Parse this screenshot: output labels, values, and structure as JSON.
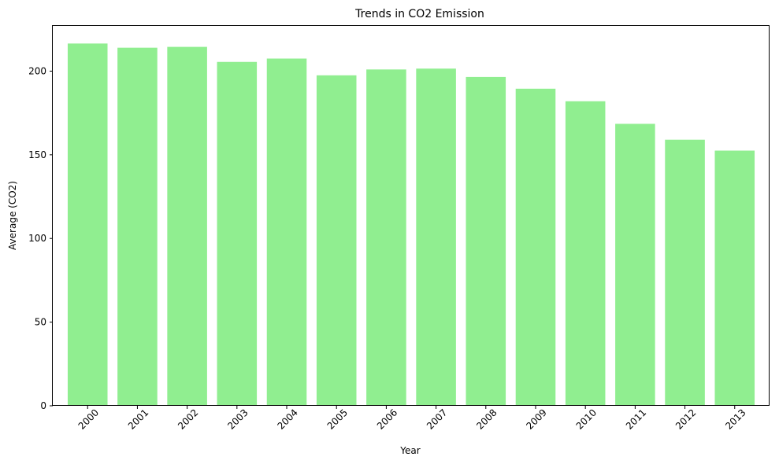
{
  "chart_data": {
    "type": "bar",
    "title": "Trends in CO2 Emission",
    "xlabel": "Year",
    "ylabel": "Average (CO2)",
    "categories": [
      "2000",
      "2001",
      "2002",
      "2003",
      "2004",
      "2005",
      "2006",
      "2007",
      "2008",
      "2009",
      "2010",
      "2011",
      "2012",
      "2013"
    ],
    "values": [
      216.5,
      214.0,
      214.5,
      205.5,
      207.5,
      197.5,
      201.0,
      201.5,
      196.5,
      189.5,
      182.0,
      168.5,
      159.0,
      152.5
    ],
    "ylim": [
      0,
      227
    ],
    "yticks": [
      0,
      50,
      100,
      150,
      200
    ],
    "xtick_rotation": 45,
    "grid": false,
    "legend": false,
    "bar_color": "#90ee90"
  }
}
